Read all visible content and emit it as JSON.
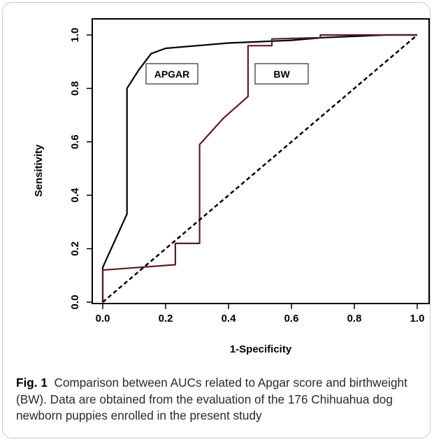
{
  "caption": {
    "label": "Fig. 1",
    "text": "Comparison between AUCs related to Apgar score and birthweight (BW). Data are obtained from the evaluation of the 176 Chihuahua dog newborn puppies enrolled in the present study"
  },
  "chart_data": {
    "type": "line",
    "title": "",
    "xlabel": "1-Specificity",
    "ylabel": "Sensitivity",
    "xlim": [
      0.0,
      1.0
    ],
    "ylim": [
      0.0,
      1.0
    ],
    "xticks": [
      "0.0",
      "0.2",
      "0.4",
      "0.6",
      "0.8",
      "1.0"
    ],
    "yticks": [
      "0.0",
      "0.2",
      "0.4",
      "0.6",
      "0.8",
      "1.0"
    ],
    "grid": false,
    "series": [
      {
        "name": "APGAR",
        "color": "#000000",
        "style": "solid",
        "x": [
          0.0,
          0.0,
          0.077,
          0.077,
          0.115,
          0.154,
          0.2,
          0.3,
          0.4,
          0.5,
          0.6,
          0.7,
          0.8,
          0.9,
          1.0
        ],
        "y": [
          0.0,
          0.13,
          0.33,
          0.8,
          0.87,
          0.93,
          0.95,
          0.96,
          0.97,
          0.975,
          0.98,
          0.99,
          0.995,
          1.0,
          1.0
        ]
      },
      {
        "name": "BW",
        "color": "#5a1f1f",
        "style": "solid",
        "x": [
          0.0,
          0.0,
          0.231,
          0.231,
          0.308,
          0.308,
          0.385,
          0.385,
          0.462,
          0.462,
          0.538,
          0.538,
          0.692,
          0.692,
          1.0
        ],
        "y": [
          0.0,
          0.12,
          0.14,
          0.22,
          0.22,
          0.59,
          0.69,
          0.69,
          0.77,
          0.96,
          0.96,
          0.985,
          0.99,
          1.0,
          1.0
        ]
      },
      {
        "name": "",
        "color": "#000000",
        "style": "dashed",
        "x": [
          0.0,
          1.0
        ],
        "y": [
          0.0,
          1.0
        ]
      }
    ],
    "legend": [
      {
        "label": "APGAR",
        "placement": "upper-left, beside APGAR curve"
      },
      {
        "label": "BW",
        "placement": "upper-middle, beside BW curve"
      }
    ]
  }
}
